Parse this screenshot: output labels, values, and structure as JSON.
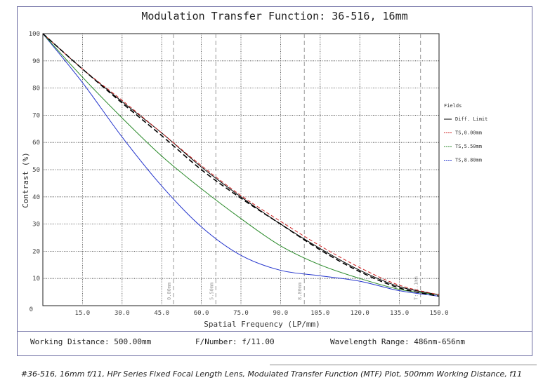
{
  "chart_data": {
    "type": "line",
    "title": "Modulation Transfer Function: 36-516, 16mm",
    "xlabel": "Spatial Frequency (LP/mm)",
    "ylabel": "Contrast (%)",
    "xlim": [
      0,
      150
    ],
    "ylim": [
      0,
      100
    ],
    "xticks": [
      15,
      30,
      45,
      60,
      75,
      90,
      105,
      120,
      135,
      150
    ],
    "xtick_labels": [
      "15.0",
      "30.0",
      "45.0",
      "60.0",
      "75.0",
      "90.0",
      "105.0",
      "120.0",
      "135.0",
      "150.0"
    ],
    "yticks": [
      0,
      10,
      20,
      30,
      40,
      50,
      60,
      70,
      80,
      90,
      100
    ],
    "ytick_labels": [
      "0",
      "10",
      "20",
      "30",
      "40",
      "50",
      "60",
      "70",
      "80",
      "90",
      "100"
    ],
    "grid": true,
    "legend_title": "Fields",
    "legend_position": "right",
    "series": [
      {
        "name": "Diff. Limit",
        "color": "#000000",
        "dash": "solid",
        "x": [
          0,
          15,
          30,
          45,
          60,
          75,
          90,
          105,
          120,
          135,
          150
        ],
        "y": [
          100,
          87,
          75,
          63.5,
          51,
          40,
          30,
          21,
          13,
          7,
          4
        ]
      },
      {
        "name": "TS,0.00mm",
        "color": "#cc2222",
        "dash": "dashed",
        "x": [
          0,
          15,
          30,
          45,
          60,
          75,
          90,
          105,
          120,
          135,
          150
        ],
        "y": [
          100,
          87,
          75.5,
          63.5,
          51.5,
          40.5,
          31,
          22,
          14,
          7.5,
          4
        ]
      },
      {
        "name": "TS,5.50mm",
        "color": "#2a8a2a",
        "dash": "solid",
        "x": [
          0,
          15,
          30,
          45,
          60,
          75,
          90,
          105,
          120,
          135,
          150
        ],
        "y": [
          100,
          84,
          69,
          55,
          43,
          32,
          22,
          15,
          10,
          6,
          4
        ]
      },
      {
        "name": "TS,8.80mm",
        "color": "#2233cc",
        "dash": "solid",
        "x": [
          0,
          15,
          30,
          45,
          60,
          75,
          90,
          105,
          120,
          135,
          150
        ],
        "y": [
          100,
          82,
          62,
          44,
          29,
          18.5,
          13,
          11,
          9,
          5.5,
          3.5
        ]
      }
    ],
    "dashed_black_series": {
      "x": [
        0,
        15,
        30,
        45,
        60,
        75,
        90,
        105,
        120,
        135,
        150
      ],
      "y": [
        100,
        87,
        74.5,
        62.5,
        50,
        39.5,
        30,
        20.5,
        12.5,
        6.5,
        3.5
      ]
    },
    "field_markers": [
      {
        "x": 49.5,
        "label": "0.00mm"
      },
      {
        "x": 65.5,
        "label": "5.50mm"
      },
      {
        "x": 99.0,
        "label": "8.80mm"
      },
      {
        "x": 143.0,
        "label": "T: 2.1mm"
      }
    ]
  },
  "footer": {
    "working_distance": "Working Distance: 500.00mm",
    "f_number": "F/Number: f/11.00",
    "wavelength": "Wavelength Range: 486nm-656nm"
  },
  "caption": "#36-516, 16mm f/11, HPr Series Fixed Focal Length Lens, Modulated Transfer Function (MTF) Plot, 500mm Working Distance, f11"
}
